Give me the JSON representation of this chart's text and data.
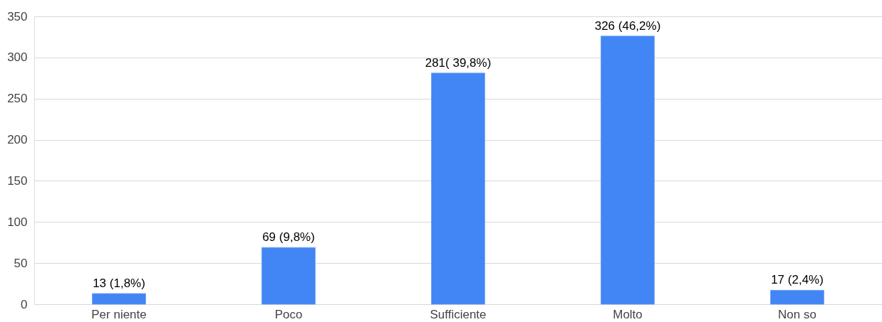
{
  "chart_data": {
    "type": "bar",
    "categories": [
      "Per niente",
      "Poco",
      "Sufficiente",
      "Molto",
      "Non so"
    ],
    "values": [
      13,
      69,
      281,
      326,
      17
    ],
    "color": "#4285f4",
    "value_labels": [
      "13 (1,8%)",
      "69 (9,8%)",
      "281( 39,8%)",
      "326 (46,2%)",
      "17 (2,4%)"
    ],
    "ylim": [
      0,
      350
    ],
    "yticks": [
      0,
      50,
      100,
      150,
      200,
      250,
      300,
      350
    ],
    "grid": "y"
  }
}
